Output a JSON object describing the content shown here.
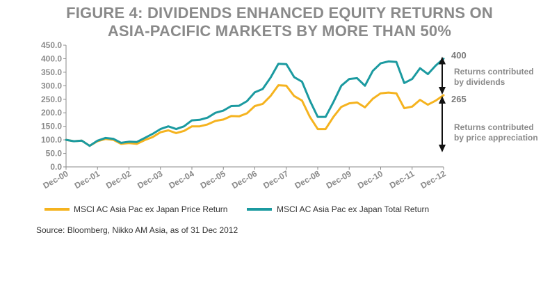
{
  "title_line1": "FIGURE 4: DIVIDENDS ENHANCED EQUITY RETURNS ON",
  "title_line2": "ASIA-PACIFIC MARKETS BY MORE THAN 50%",
  "source": "Source: Bloomberg, Nikko AM Asia, as of 31 Dec 2012",
  "annotations": {
    "top_value": "400",
    "mid_value": "265",
    "dividends_line1": "Returns contributed",
    "dividends_line2": "by dividends",
    "price_line1": "Returns contributed",
    "price_line2": "by price appreciation"
  },
  "colors": {
    "price": "#F5B31F",
    "total": "#1B9AA0",
    "axis": "#8a8a8a",
    "arrow": "#111111"
  },
  "chart_data": {
    "type": "line",
    "title": "FIGURE 4: DIVIDENDS ENHANCED EQUITY RETURNS ON ASIA-PACIFIC MARKETS BY MORE THAN 50%",
    "ylim": [
      0,
      450
    ],
    "yticks": [
      "0.0",
      "50.0",
      "100.0",
      "150.0",
      "200.0",
      "250.0",
      "300.0",
      "350.0",
      "400.0",
      "450.0"
    ],
    "xtick_labels": [
      "Dec-00",
      "Dec-01",
      "Dec-02",
      "Dec-03",
      "Dec-04",
      "Dec-05",
      "Dec-06",
      "Dec-07",
      "Dec-08",
      "Dec-09",
      "Dec-10",
      "Dec-11",
      "Dec-12"
    ],
    "x_range": [
      2000.92,
      2012.92
    ],
    "legend_position": "bottom",
    "series": [
      {
        "name": "MSCI AC Asia Pac ex Japan Price Return",
        "color": "#F5B31F",
        "x": [
          2000.92,
          2001.17,
          2001.42,
          2001.67,
          2001.92,
          2002.17,
          2002.42,
          2002.67,
          2002.92,
          2003.17,
          2003.42,
          2003.67,
          2003.92,
          2004.17,
          2004.42,
          2004.67,
          2004.92,
          2005.17,
          2005.42,
          2005.67,
          2005.92,
          2006.17,
          2006.42,
          2006.67,
          2006.92,
          2007.17,
          2007.42,
          2007.67,
          2007.92,
          2008.17,
          2008.42,
          2008.67,
          2008.92,
          2009.17,
          2009.42,
          2009.67,
          2009.92,
          2010.17,
          2010.42,
          2010.67,
          2010.92,
          2011.17,
          2011.42,
          2011.67,
          2011.92,
          2012.17,
          2012.42,
          2012.67,
          2012.92
        ],
        "values": [
          100,
          95,
          97,
          78,
          95,
          103,
          100,
          85,
          88,
          85,
          99,
          110,
          128,
          135,
          125,
          133,
          150,
          150,
          157,
          170,
          175,
          188,
          187,
          198,
          225,
          233,
          262,
          302,
          300,
          262,
          245,
          185,
          140,
          140,
          185,
          222,
          235,
          238,
          220,
          252,
          272,
          275,
          272,
          217,
          223,
          248,
          230,
          245,
          265
        ]
      },
      {
        "name": "MSCI AC Asia Pac ex Japan Total Return",
        "color": "#1B9AA0",
        "x": [
          2000.92,
          2001.17,
          2001.42,
          2001.67,
          2001.92,
          2002.17,
          2002.42,
          2002.67,
          2002.92,
          2003.17,
          2003.42,
          2003.67,
          2003.92,
          2004.17,
          2004.42,
          2004.67,
          2004.92,
          2005.17,
          2005.42,
          2005.67,
          2005.92,
          2006.17,
          2006.42,
          2006.67,
          2006.92,
          2007.17,
          2007.42,
          2007.67,
          2007.92,
          2008.17,
          2008.42,
          2008.67,
          2008.92,
          2009.17,
          2009.42,
          2009.67,
          2009.92,
          2010.17,
          2010.42,
          2010.67,
          2010.92,
          2011.17,
          2011.42,
          2011.67,
          2011.92,
          2012.17,
          2012.42,
          2012.67,
          2012.92
        ],
        "values": [
          100,
          95,
          97,
          78,
          97,
          107,
          104,
          89,
          93,
          92,
          107,
          122,
          140,
          150,
          140,
          150,
          172,
          174,
          182,
          200,
          208,
          225,
          226,
          243,
          276,
          288,
          330,
          381,
          380,
          332,
          315,
          245,
          185,
          185,
          240,
          300,
          325,
          328,
          300,
          355,
          383,
          390,
          388,
          310,
          325,
          365,
          343,
          375,
          400
        ]
      }
    ]
  }
}
